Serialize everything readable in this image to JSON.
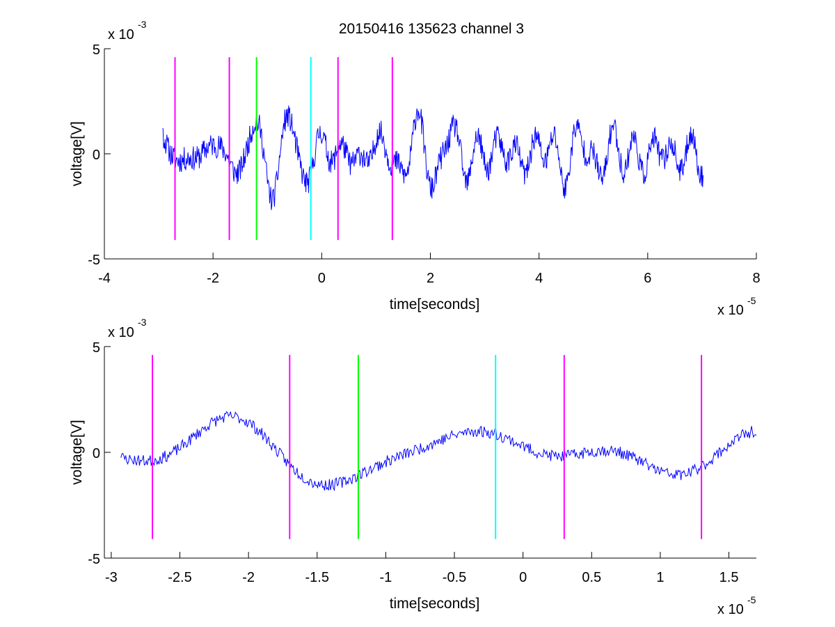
{
  "title": "20150416 135623 channel 3",
  "chart_data": [
    {
      "type": "line",
      "xlabel": "time[seconds]",
      "ylabel": "voltage[V]",
      "x_exponent_label": "x 10",
      "x_exponent_power": "-5",
      "y_exponent_label": "x 10",
      "y_exponent_power": "-3",
      "xlim": [
        -4,
        8
      ],
      "ylim": [
        -5,
        5
      ],
      "x_ticks": [
        "-4",
        "-2",
        "0",
        "2",
        "4",
        "6",
        "8"
      ],
      "y_ticks": [
        "5",
        "0",
        "-5"
      ],
      "x_tick_values": [
        -4,
        -2,
        0,
        2,
        4,
        6,
        8
      ],
      "y_tick_values": [
        5,
        0,
        -5
      ],
      "signal": {
        "color": "#0000ff",
        "x_start": -2.93,
        "x_end": 7.02,
        "seed": 11,
        "style": "noisy"
      },
      "markers": [
        {
          "x": -2.7,
          "color": "#ff00ff"
        },
        {
          "x": -1.7,
          "color": "#ff00ff"
        },
        {
          "x": -1.2,
          "color": "#00ff00"
        },
        {
          "x": -0.2,
          "color": "#00ffff"
        },
        {
          "x": 0.3,
          "color": "#ff00ff"
        },
        {
          "x": 1.3,
          "color": "#ff00ff"
        }
      ],
      "marker_range": [
        -4.1,
        4.6
      ],
      "grid": false
    },
    {
      "type": "line",
      "xlabel": "time[seconds]",
      "ylabel": "voltage[V]",
      "x_exponent_label": "x 10",
      "x_exponent_power": "-5",
      "y_exponent_label": "x 10",
      "y_exponent_power": "-3",
      "xlim": [
        -3.05,
        1.7
      ],
      "ylim": [
        -5,
        5
      ],
      "x_ticks": [
        "-3",
        "-2.5",
        "-2",
        "-1.5",
        "-1",
        "-0.5",
        "0",
        "0.5",
        "1",
        "1.5"
      ],
      "y_ticks": [
        "5",
        "0",
        "-5"
      ],
      "x_tick_values": [
        -3,
        -2.5,
        -2,
        -1.5,
        -1,
        -0.5,
        0,
        0.5,
        1,
        1.5
      ],
      "y_tick_values": [
        5,
        0,
        -5
      ],
      "signal": {
        "color": "#0000ff",
        "x_start": -2.93,
        "x_end": 1.7,
        "seed": 23,
        "style": "smooth"
      },
      "markers": [
        {
          "x": -2.7,
          "color": "#ff00ff"
        },
        {
          "x": -1.7,
          "color": "#ff00ff"
        },
        {
          "x": -1.2,
          "color": "#00ff00"
        },
        {
          "x": -0.2,
          "color": "#00ffff"
        },
        {
          "x": 0.3,
          "color": "#ff00ff"
        },
        {
          "x": 1.3,
          "color": "#ff00ff"
        }
      ],
      "marker_range": [
        -4.1,
        4.6
      ],
      "grid": false
    }
  ]
}
